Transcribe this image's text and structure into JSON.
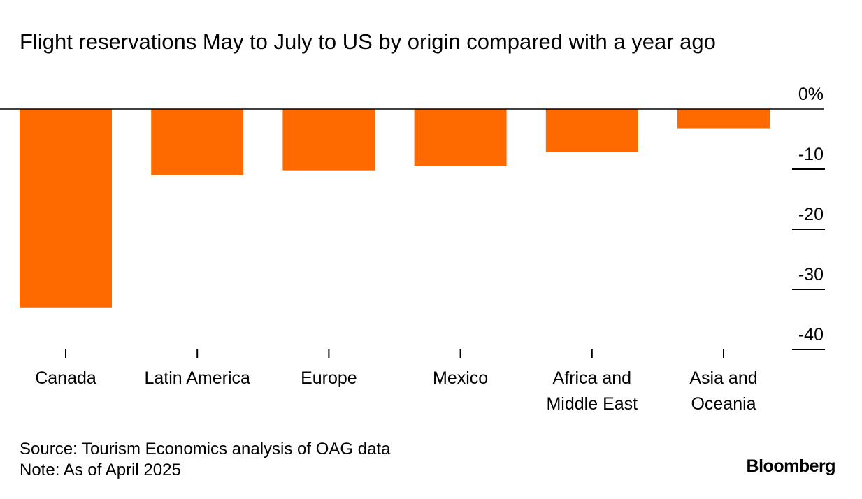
{
  "title": "Flight reservations May to July to US by origin compared with a year ago",
  "source": "Source: Tourism Economics analysis of OAG data",
  "note": "Note: As of April 2025",
  "brand": "Bloomberg",
  "colors": {
    "bar": "#ff6a00",
    "zero_line": "#000000",
    "tick": "#000000"
  },
  "chart_data": {
    "type": "bar",
    "categories": [
      [
        "Canada"
      ],
      [
        "Latin America"
      ],
      [
        "Europe"
      ],
      [
        "Mexico"
      ],
      [
        "Africa and",
        "Middle East"
      ],
      [
        "Asia and",
        "Oceania"
      ]
    ],
    "values": [
      -33,
      -11,
      -10.2,
      -9.5,
      -7.2,
      -3.2
    ],
    "unit": "%",
    "y_ticks": [
      0,
      -10,
      -20,
      -30,
      -40
    ],
    "y_tick_labels": [
      "0%",
      "-10",
      "-20",
      "-30",
      "-40"
    ],
    "ylim": [
      -40,
      0
    ],
    "y_axis_position": "right",
    "grid": false
  }
}
